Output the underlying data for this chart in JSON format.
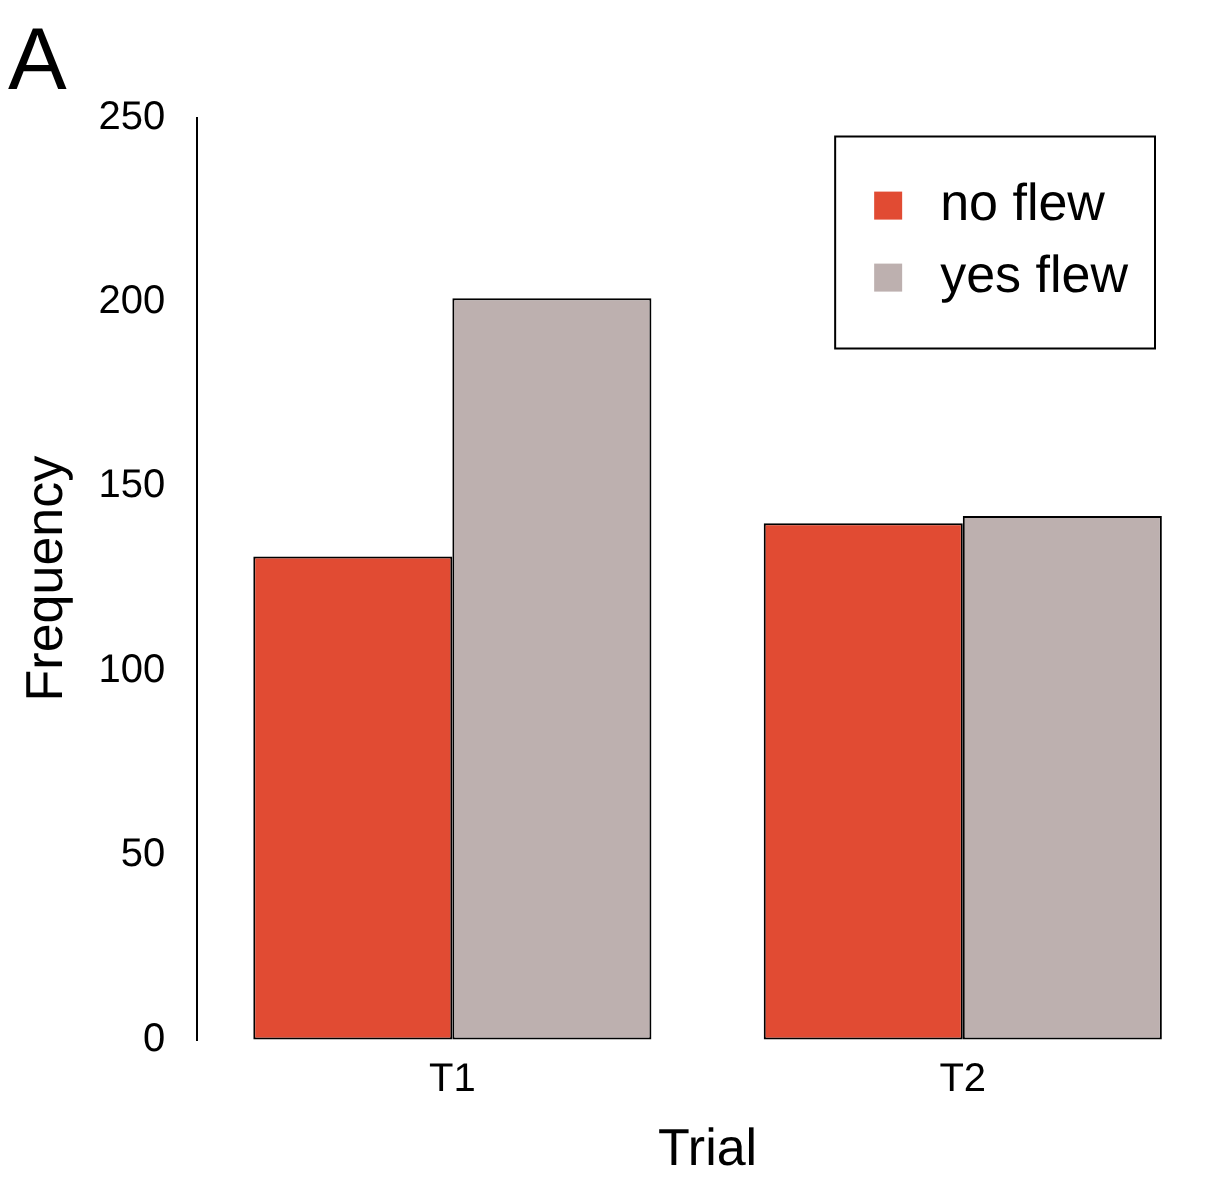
{
  "chart_data": {
    "type": "bar",
    "title": "A",
    "xlabel": "Trial",
    "ylabel": "Frequency",
    "categories": [
      "T1",
      "T2"
    ],
    "series": [
      {
        "name": "no flew",
        "color": "#e14b33",
        "values": [
          131,
          140
        ]
      },
      {
        "name": "yes flew",
        "color": "#bdb0af",
        "values": [
          201,
          142
        ]
      }
    ],
    "ylim": [
      0,
      250
    ],
    "yticks": [
      0,
      50,
      100,
      150,
      200,
      250
    ],
    "grid": false,
    "legend": "top right"
  }
}
